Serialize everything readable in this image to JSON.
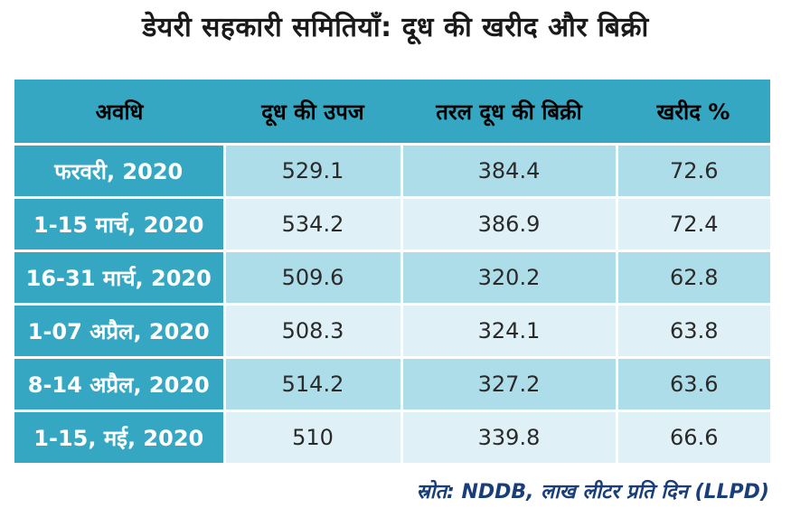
{
  "title": "डेयरी सहकारी समितियाँ: दूध की खरीद और बिक्री",
  "table": {
    "headers": [
      "अवधि",
      "दूध की उपज",
      "तरल दूध की बिक्री",
      "खरीद %"
    ],
    "rows": [
      {
        "period": "फरवरी, 2020",
        "production": "529.1",
        "sales": "384.4",
        "procurement_pct": "72.6"
      },
      {
        "period": "1-15 मार्च, 2020",
        "production": "534.2",
        "sales": "386.9",
        "procurement_pct": "72.4"
      },
      {
        "period": "16-31 मार्च, 2020",
        "production": "509.6",
        "sales": "320.2",
        "procurement_pct": "62.8"
      },
      {
        "period": "1-07 अप्रैल, 2020",
        "production": "508.3",
        "sales": "324.1",
        "procurement_pct": "63.8"
      },
      {
        "period": "8-14 अप्रैल, 2020",
        "production": "514.2",
        "sales": "327.2",
        "procurement_pct": "63.6"
      },
      {
        "period": "1-15, मई, 2020",
        "production": "510",
        "sales": "339.8",
        "procurement_pct": "66.6"
      }
    ]
  },
  "source": "स्रोत: NDDB, लाख लीटर प्रति दिन (LLPD)",
  "colors": {
    "header_bg": "#35a7c3",
    "row_dark": "#aeddea",
    "row_light": "#dff1f6",
    "source_text": "#1a3e7a"
  }
}
